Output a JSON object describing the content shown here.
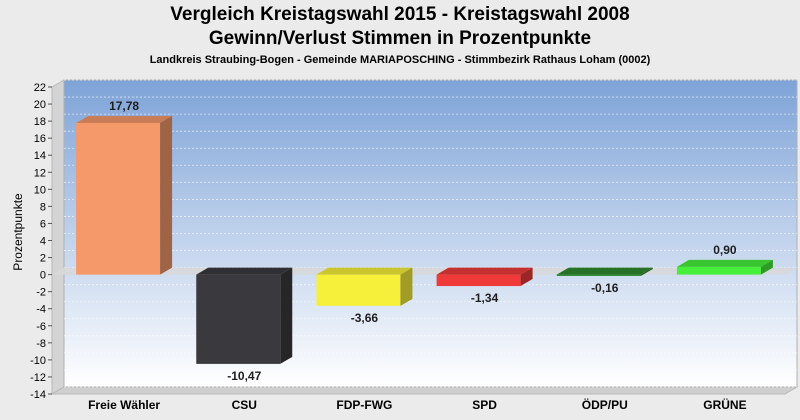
{
  "chart_data": {
    "type": "bar",
    "title": "Vergleich Kreistagswahl 2015 - Kreistagswahl 2008",
    "subtitle": "Gewinn/Verlust Stimmen in Prozentpunkte",
    "caption": "Landkreis Straubing-Bogen - Gemeinde MARIAPOSCHING - Stimmbezirk Rathaus Loham (0002)",
    "xlabel": "",
    "ylabel": "Prozentpunkte",
    "ylim": [
      -14,
      22
    ],
    "ytick_step": 2,
    "categories": [
      "Freie Wähler",
      "CSU",
      "FDP-FWG",
      "SPD",
      "ÖDP/PU",
      "GRÜNE"
    ],
    "values": [
      17.78,
      -10.47,
      -3.66,
      -1.34,
      -0.16,
      0.9
    ],
    "value_labels": [
      "17,78",
      "-10,47",
      "-3,66",
      "-1,34",
      "-0,16",
      "0,90"
    ],
    "colors": [
      "#f5986a",
      "#3a3a3e",
      "#f7f03a",
      "#f03a3a",
      "#2f8a2f",
      "#46f03a"
    ],
    "grid": true
  }
}
